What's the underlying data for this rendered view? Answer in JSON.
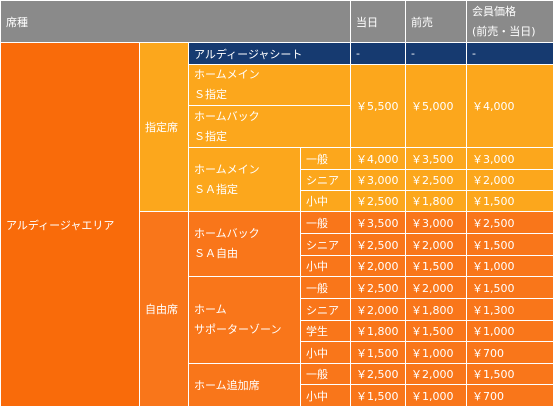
{
  "table": {
    "header": [
      "席種",
      "当日",
      "前売",
      [
        "会員価格",
        "(前売・当日)"
      ]
    ],
    "rows": [
      [
        "アルディージャエリア",
        "指定席",
        "アルディージャシート",
        "-",
        "-",
        "-"
      ],
      [
        [
          "ホームメイン",
          "Ｓ指定"
        ],
        "￥5,500",
        "￥5,000",
        "￥4,000"
      ],
      [
        [
          "ホームバック",
          "Ｓ指定"
        ]
      ],
      [
        [
          "ホームメイン",
          "ＳＡ指定"
        ],
        "一般",
        "￥4,000",
        "￥3,500",
        "￥3,000"
      ],
      [
        "シニア",
        "￥3,000",
        "￥2,500",
        "￥2,000"
      ],
      [
        "小中",
        "￥2,500",
        "￥1,800",
        "￥1,500"
      ],
      [
        "自由席",
        [
          "ホームバック",
          "ＳＡ自由"
        ],
        "一般",
        "￥3,500",
        "￥3,000",
        "￥2,500"
      ],
      [
        "シニア",
        "￥2,500",
        "￥2,000",
        "￥1,500"
      ],
      [
        "小中",
        "￥2,000",
        "￥1,500",
        "￥1,000"
      ],
      [
        [
          "ホーム",
          "サポーターゾーン"
        ],
        "一般",
        "￥2,500",
        "￥2,000",
        "￥1,500"
      ],
      [
        "シニア",
        "￥2,000",
        "￥1,800",
        "￥1,300"
      ],
      [
        "学生",
        "￥1,800",
        "￥1,500",
        "￥1,000"
      ],
      [
        "小中",
        "￥1,500",
        "￥1,000",
        "￥700"
      ],
      [
        "ホーム追加席",
        "一般",
        "￥2,500",
        "￥2,000",
        "￥1,500"
      ],
      [
        "小中",
        "￥1,500",
        "￥1,000",
        "￥700"
      ]
    ]
  }
}
